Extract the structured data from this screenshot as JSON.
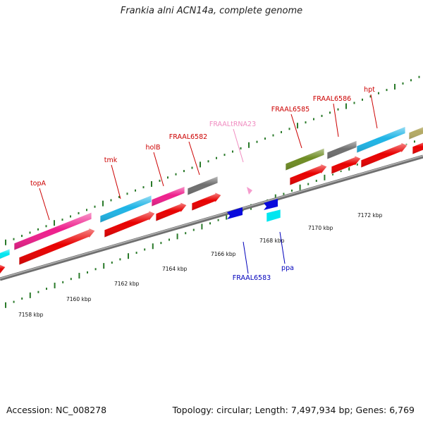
{
  "title": "Frankia alni ACN14a, complete genome",
  "footer": {
    "accession": "Accession: NC_008278",
    "summary": "Topology: circular; Length: 7,497,934 bp; Genes: 6,769"
  },
  "colors": {
    "cds_red": "#e80000",
    "label_red": "#cc0000",
    "label_blue": "#0000bb",
    "label_pink": "#f08cc0",
    "backbone": "#8c8c8c",
    "tick_green": "#2a7a2a",
    "gene_pink": "#ee1f8c",
    "gene_cyan": "#1eb4e6",
    "gene_gray": "#6e6e6e",
    "gene_olive": "#6e8c23",
    "gene_khaki": "#b4aa64",
    "gene_blue": "#0a0adc",
    "gene_lightcyan": "#00e6f0",
    "trna_pink": "#f59ccd"
  },
  "scale_labels": [
    "7158 kbp",
    "7160 kbp",
    "7162 kbp",
    "7164 kbp",
    "7166 kbp",
    "7168 kbp",
    "7170 kbp",
    "7172 kbp"
  ],
  "gene_labels": [
    {
      "text": "topA",
      "color": "label_red"
    },
    {
      "text": "tmk",
      "color": "label_red"
    },
    {
      "text": "holB",
      "color": "label_red"
    },
    {
      "text": "FRAAL6582",
      "color": "label_red"
    },
    {
      "text": "FRAALtRNA23",
      "color": "label_pink"
    },
    {
      "text": "FRAAL6585",
      "color": "label_red"
    },
    {
      "text": "FRAAL6586",
      "color": "label_red"
    },
    {
      "text": "hpt",
      "color": "label_red"
    },
    {
      "text": "FRAAL6583",
      "color": "label_blue"
    },
    {
      "text": "ppa",
      "color": "label_blue"
    }
  ]
}
